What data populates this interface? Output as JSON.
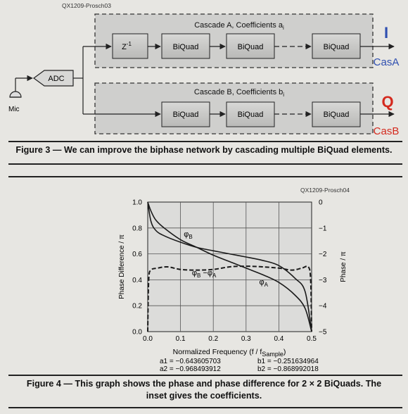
{
  "figure3": {
    "ref_id": "QX1209-Prosch03",
    "cascade_a_title": "Cascade A, Coefficients a",
    "cascade_a_sub": "i",
    "cascade_b_title": "Cascade B, Coefficients b",
    "cascade_b_sub": "i",
    "adc_label": "ADC",
    "mic_label": "Mic",
    "delay_label": "Z",
    "delay_sup": "-1",
    "biquad_label": "BiQuad",
    "output_i_label": "I",
    "output_i_sub": "CasA",
    "output_q_label": "Q",
    "output_q_sub": "CasB",
    "output_i_color": "#2f4fb0",
    "output_q_color": "#d42a1e",
    "caption": "Figure 3 — We can improve the biphase network by cascading multiple BiQuad elements."
  },
  "figure4": {
    "ref_id": "QX1209-Prosch04",
    "caption_line1": "Figure 4 — This graph shows the phase and phase difference for 2 × 2 BiQuads. The",
    "caption_line2": "inset gives the coefficients.",
    "coefficients": [
      [
        "a1 = −0.643605703",
        "b1 = −0.251634964"
      ],
      [
        "a2 = −0.968493912",
        "b2 = −0.868992018"
      ]
    ]
  },
  "chart_data": {
    "type": "line",
    "xlabel": "Normalized Frequency (f / f",
    "xlabel_sub": "Sample",
    "xlabel_end": ")",
    "ylabel_left": "Phase Difference / π",
    "ylabel_right": "Phase / π",
    "xlim": [
      0,
      0.5
    ],
    "ylim_left": [
      0,
      1
    ],
    "ylim_right": [
      -5,
      0
    ],
    "x_ticks": [
      "0.0",
      "0.1",
      "0.2",
      "0.3",
      "0.4",
      "0.5"
    ],
    "y_left_ticks": [
      "0.0",
      "0.2",
      "0.4",
      "0.6",
      "0.8",
      "1.0"
    ],
    "y_right_ticks": [
      "0",
      "−1",
      "−2",
      "−3",
      "−4",
      "−5"
    ],
    "grid": true,
    "series": [
      {
        "name": "φB",
        "axis": "right",
        "style": "solid",
        "x": [
          0.0,
          0.01,
          0.025,
          0.05,
          0.1,
          0.15,
          0.2,
          0.25,
          0.3,
          0.35,
          0.4,
          0.45,
          0.48,
          0.5
        ],
        "y": [
          0.0,
          -0.75,
          -1.1,
          -1.3,
          -1.55,
          -1.75,
          -1.88,
          -2.0,
          -2.12,
          -2.25,
          -2.45,
          -2.95,
          -3.45,
          -5.0
        ]
      },
      {
        "name": "φA",
        "axis": "right",
        "style": "solid",
        "x": [
          0.0,
          0.01,
          0.025,
          0.05,
          0.1,
          0.15,
          0.2,
          0.25,
          0.3,
          0.35,
          0.4,
          0.45,
          0.48,
          0.5
        ],
        "y": [
          0.0,
          -0.35,
          -0.7,
          -1.0,
          -1.45,
          -1.75,
          -2.05,
          -2.3,
          -2.55,
          -2.8,
          -3.1,
          -3.6,
          -4.1,
          -5.0
        ]
      },
      {
        "name": "φB − φA",
        "axis": "left",
        "style": "dashed",
        "x": [
          0.0,
          0.003,
          0.01,
          0.03,
          0.06,
          0.1,
          0.15,
          0.2,
          0.25,
          0.3,
          0.35,
          0.4,
          0.44,
          0.47,
          0.49,
          0.497,
          0.5
        ],
        "y": [
          0.0,
          0.4,
          0.475,
          0.49,
          0.5,
          0.48,
          0.475,
          0.48,
          0.5,
          0.505,
          0.5,
          0.49,
          0.475,
          0.49,
          0.5,
          0.4,
          0.0
        ]
      }
    ],
    "annotations": [
      {
        "text": "φ",
        "sub": "B",
        "x": 0.11,
        "y_left": 0.735
      },
      {
        "text": "φ",
        "sub": "B",
        "text2": " −φ",
        "sub2": "A",
        "x": 0.135,
        "y_left": 0.435
      },
      {
        "text": "φ",
        "sub": "A",
        "x": 0.34,
        "y_left": 0.365
      }
    ]
  }
}
